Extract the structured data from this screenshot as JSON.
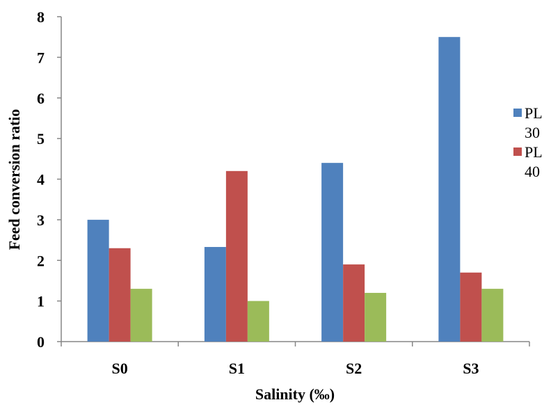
{
  "chart_data": {
    "type": "bar",
    "xlabel": "Salinity (‰)",
    "ylabel": "Feed conversion ratio",
    "categories": [
      "S0",
      "S1",
      "S2",
      "S3"
    ],
    "ylim": [
      0,
      8
    ],
    "y_ticks": [
      "0",
      "1",
      "2",
      "3",
      "4",
      "5",
      "6",
      "7",
      "8"
    ],
    "grid": false,
    "legend_position": "right",
    "series": [
      {
        "name": "PL 30",
        "legend_lines": [
          "PL",
          "30"
        ],
        "color": "#4f81bd",
        "values": [
          3.0,
          2.33,
          4.4,
          7.5
        ]
      },
      {
        "name": "PL 40",
        "legend_lines": [
          "PL",
          "40"
        ],
        "color": "#c0504d",
        "values": [
          2.3,
          4.2,
          1.9,
          1.7
        ]
      },
      {
        "name": "",
        "legend_lines": [],
        "color": "#9bbb59",
        "values": [
          1.3,
          1.0,
          1.2,
          1.3
        ]
      }
    ]
  }
}
